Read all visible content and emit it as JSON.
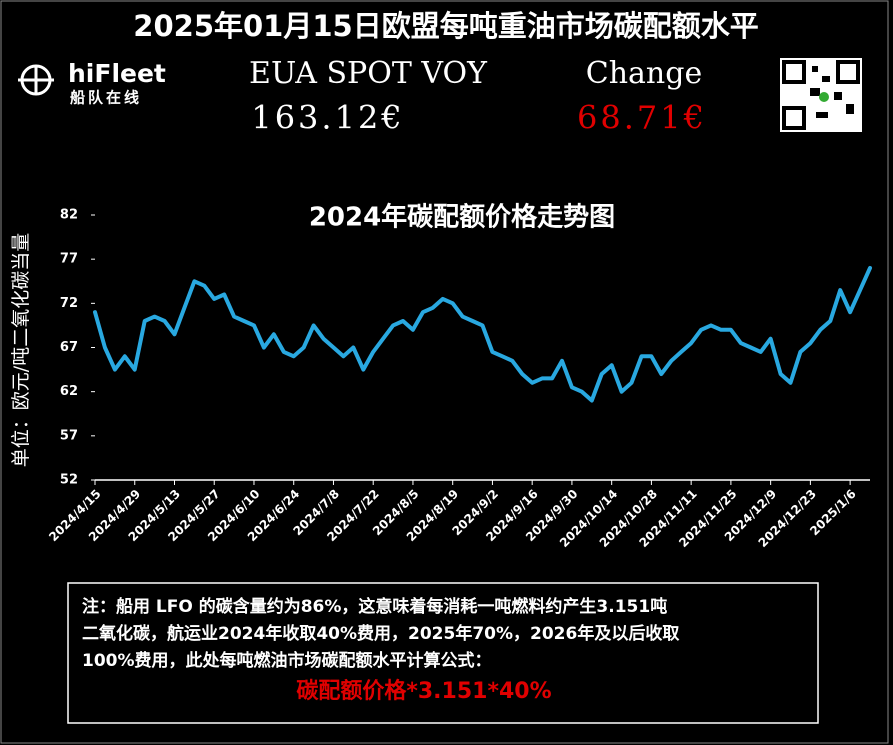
{
  "header": {
    "title": "2025年01月15日欧盟每吨重油市场碳配额水平",
    "brand": "hiFleet",
    "brand_sub": "船队在线"
  },
  "metrics": [
    {
      "label": "EUA SPOT VOY",
      "value": "163.12€"
    },
    {
      "label": "Change",
      "value": "68.71€"
    }
  ],
  "chart_data": {
    "type": "line",
    "title": "2024年碳配额价格走势图",
    "y_label": "单位：欧元/吨二氧化碳当量",
    "color": "#29a8e0",
    "categories": [
      "2024/4/15",
      null,
      null,
      null,
      "2024/4/29",
      null,
      null,
      null,
      "2024/5/13",
      null,
      null,
      null,
      "2024/5/27",
      null,
      null,
      null,
      "2024/6/10",
      null,
      null,
      null,
      "2024/6/24",
      null,
      null,
      null,
      "2024/7/8",
      null,
      null,
      null,
      "2024/7/22",
      null,
      null,
      null,
      "2024/8/5",
      null,
      null,
      null,
      "2024/8/19",
      null,
      null,
      null,
      "2024/9/2",
      null,
      null,
      null,
      "2024/9/16",
      null,
      null,
      null,
      "2024/9/30",
      null,
      null,
      null,
      "2024/10/14",
      null,
      null,
      null,
      "2024/10/28",
      null,
      null,
      null,
      "2024/11/11",
      null,
      null,
      null,
      "2024/11/25",
      null,
      null,
      null,
      "2024/12/9",
      null,
      null,
      null,
      "2024/12/23",
      null,
      null,
      null,
      "2025/1/6",
      null,
      null
    ],
    "values": [
      71,
      67,
      64.5,
      66,
      64.5,
      70,
      70.5,
      70,
      68.5,
      71.5,
      74.5,
      74,
      72.5,
      73,
      70.5,
      70,
      69.5,
      67,
      68.5,
      66.5,
      66,
      67,
      69.5,
      68,
      67,
      66,
      67,
      64.5,
      66.5,
      68,
      69.5,
      70,
      69,
      71,
      71.5,
      72.5,
      72,
      70.5,
      70,
      69.5,
      66.5,
      66,
      65.5,
      64,
      63,
      63.5,
      63.5,
      65.5,
      62.5,
      62,
      61,
      64,
      65,
      62,
      63,
      66,
      66,
      64,
      65.5,
      66.5,
      67.5,
      69,
      69.5,
      69,
      69,
      67.5,
      67,
      66.5,
      68,
      64,
      63,
      66.5,
      67.5,
      69,
      70,
      73.5,
      71,
      73.5,
      76
    ],
    "ylim": [
      52,
      82
    ],
    "yticks": [
      52,
      57,
      62,
      67,
      72,
      77,
      82
    ]
  },
  "note": {
    "lines": [
      "注：船用 LFO 的碳含量约为86%，这意味着每消耗一吨燃料约产生3.151吨",
      "二氧化碳，航运业2024年收取40%费用，2025年70%，2026年及以后收取",
      "100%费用，此处每吨燃油市场碳配额水平计算公式："
    ],
    "formula": "碳配额价格*3.151*40%"
  }
}
